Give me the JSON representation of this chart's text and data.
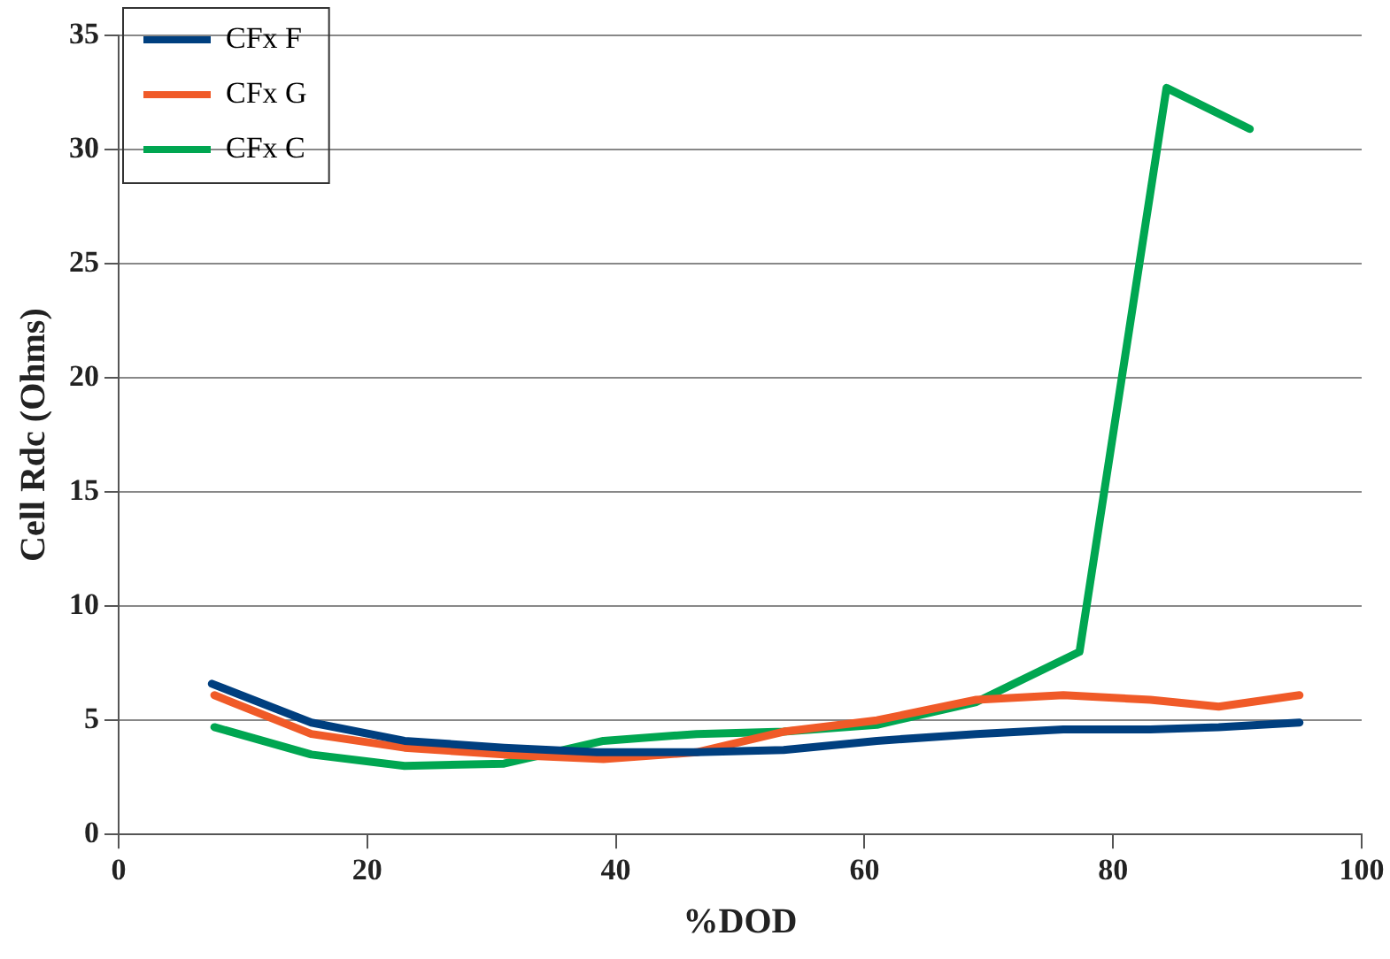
{
  "chart_data": {
    "type": "line",
    "xlabel": "%DOD",
    "ylabel": "Cell Rdc (Ohms)",
    "xlim": [
      0,
      100
    ],
    "xticks": [
      0,
      20,
      40,
      60,
      80,
      100
    ],
    "ylim": [
      0,
      35
    ],
    "yticks": [
      0,
      5,
      10,
      15,
      20,
      25,
      30,
      35
    ],
    "grid": "y",
    "legend": "top left",
    "marker": "none",
    "line_style": "solid",
    "series": [
      {
        "name": "CFx F",
        "color": "#003f7f",
        "x": [
          7.5,
          15.5,
          23,
          31,
          38.5,
          46.5,
          53.5,
          61,
          69,
          76,
          83,
          88.5,
          95
        ],
        "values": [
          6.6,
          4.9,
          4.1,
          3.8,
          3.6,
          3.6,
          3.7,
          4.1,
          4.4,
          4.6,
          4.6,
          4.7,
          4.9
        ]
      },
      {
        "name": "CFx G",
        "color": "#f05a28",
        "x": [
          7.7,
          15.5,
          23,
          31,
          39,
          46.5,
          53.5,
          61,
          69,
          76,
          83,
          88.5,
          95
        ],
        "values": [
          6.1,
          4.4,
          3.8,
          3.5,
          3.3,
          3.6,
          4.5,
          5.0,
          5.9,
          6.1,
          5.9,
          5.6,
          6.1
        ]
      },
      {
        "name": "CFx C",
        "color": "#00a651",
        "x": [
          7.7,
          15.5,
          23,
          31,
          39,
          46.5,
          53.5,
          61,
          69,
          77.3,
          84.3,
          91
        ],
        "values": [
          4.7,
          3.5,
          3.0,
          3.1,
          4.1,
          4.4,
          4.5,
          4.8,
          5.8,
          8.0,
          32.7,
          30.9
        ]
      }
    ]
  }
}
